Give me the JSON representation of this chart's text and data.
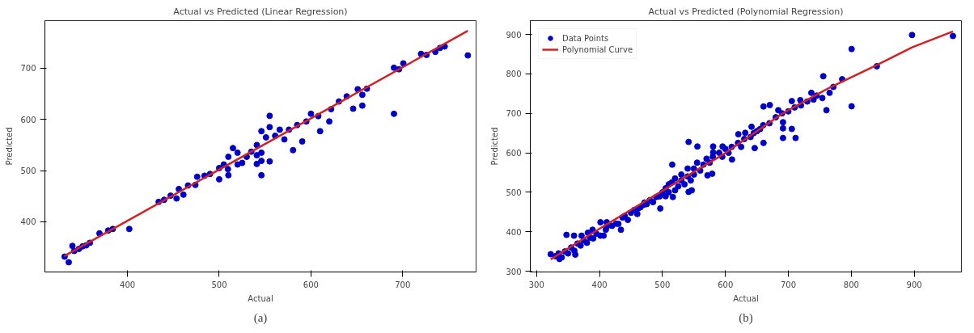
{
  "chart_data": [
    {
      "type": "scatter",
      "title": "Actual vs Predicted (Linear Regression)",
      "xlabel": "Actual",
      "ylabel": "Predicted",
      "annotations": [
        "(a)"
      ],
      "xlim": [
        310,
        780
      ],
      "ylim": [
        302,
        793
      ],
      "xticks": [
        400,
        500,
        600,
        700
      ],
      "yticks": [
        400,
        500,
        600,
        700
      ],
      "grid": false,
      "legend": false,
      "series": [
        {
          "marker": "circle",
          "color": "#0000cc",
          "x": [
            331.5,
            336,
            340,
            342,
            347,
            351,
            355,
            359,
            369.5,
            379,
            384,
            402,
            434,
            440,
            447,
            453.5,
            456,
            461,
            466,
            474,
            476,
            484,
            490,
            500,
            500,
            505,
            510,
            510,
            509.5,
            515,
            520,
            520,
            525,
            530,
            535,
            541,
            541,
            541,
            546,
            546,
            546,
            546,
            555,
            555,
            555,
            551,
            561,
            566,
            571,
            576,
            580.5,
            585,
            590.5,
            595,
            600,
            610,
            608,
            620,
            622,
            630.5,
            639,
            646,
            651,
            656,
            656,
            661,
            690.5,
            690.5,
            696,
            700.7,
            720,
            726,
            735.6,
            740.7,
            745.8,
            771
          ],
          "values": [
            332,
            321,
            353,
            343,
            347,
            352,
            354,
            359,
            377.5,
            383,
            386,
            386,
            439,
            443,
            451,
            445.6,
            464,
            453,
            471,
            472,
            488,
            490,
            493.5,
            505,
            483,
            512,
            527,
            491,
            503,
            544,
            535,
            512,
            515,
            527,
            537,
            550,
            530,
            513,
            577,
            535,
            519,
            491,
            607,
            585,
            518,
            565,
            568,
            580,
            561,
            580,
            540,
            589,
            557,
            596,
            611,
            577,
            606.5,
            596,
            620,
            635,
            645,
            621,
            659,
            627,
            648,
            660,
            611,
            701,
            698,
            709.5,
            728,
            726,
            732,
            739.6,
            742.6,
            725
          ]
        },
        {
          "type": "line",
          "color": "#d42020",
          "x": [
            331,
            771
          ],
          "values": [
            333,
            773
          ]
        }
      ]
    },
    {
      "type": "scatter",
      "title": "Actual vs Predicted (Polynomial Regression)",
      "xlabel": "Actual",
      "ylabel": "Predicted",
      "annotations": [
        "(b)"
      ],
      "xlim": [
        290,
        975
      ],
      "ylim": [
        298,
        935
      ],
      "xticks": [
        300,
        400,
        500,
        600,
        700,
        800,
        900
      ],
      "yticks": [
        300,
        400,
        500,
        600,
        700,
        800,
        900
      ],
      "grid": false,
      "legend": "top left",
      "series": [
        {
          "marker": "circle",
          "name": "Data Points",
          "color": "#0000cc",
          "x": [
            961.5,
            896.5,
            800.5,
            800.5,
            840.5,
            785.5,
            755.5,
            771.5,
            765.5,
            760.5,
            754,
            736.5,
            719,
            705.5,
            711.5,
            705.5,
            691.5,
            691.5,
            691.5,
            684,
            670.5,
            660.5,
            660.5,
            646.5,
            641.5,
            631.5,
            620.5,
            610.5,
            595.5,
            580.5,
            580.5,
            571.5,
            579,
            555.5,
            541.5,
            541.5,
            546.5,
            515.5,
            496.5,
            495.5,
            516.5,
            471.5,
            461.5,
            436.5,
            434,
            426.5,
            411.5,
            406.5,
            401.5,
            411.5,
            401.5,
            347.5,
            361.5,
            336.5,
            322.5,
            389,
            381.5,
            371.5,
            359.5,
            330,
            335,
            340,
            345,
            350,
            355,
            360,
            365,
            370,
            375,
            380,
            385,
            390,
            395,
            410,
            420,
            430,
            440,
            445,
            450,
            455,
            460,
            465,
            470,
            475,
            480,
            485,
            490,
            500,
            505,
            505,
            510,
            510,
            515,
            520,
            520,
            525,
            530,
            530,
            535,
            540,
            540,
            545,
            550,
            550,
            555,
            560,
            565,
            570,
            575,
            580,
            590,
            595,
            600,
            605,
            610,
            620,
            625,
            630,
            640,
            645,
            650,
            655,
            660,
            670,
            680,
            690,
            700,
            710,
            720,
            730,
            740,
            745
          ],
          "values": [
            896,
            898.5,
            863,
            718,
            819.4,
            786.4,
            794,
            767,
            752,
            708,
            739,
            752,
            733.5,
            731,
            637.6,
            660.6,
            637.6,
            662,
            677.5,
            708,
            721,
            717.4,
            625,
            612,
            666,
            650.6,
            647,
            583,
            616,
            616,
            600.8,
            543,
            547,
            616,
            627.6,
            501,
            505,
            570,
            459,
            489.5,
            488,
            474,
            459,
            436,
            405,
            420.5,
            413,
            390,
            390,
            424,
            424,
            392,
            342,
            331,
            343,
            405,
            397.5,
            390,
            390,
            338,
            345,
            335,
            350,
            345,
            360,
            352,
            370,
            365,
            378,
            372,
            385,
            383,
            395,
            405,
            415,
            420,
            440,
            430,
            448,
            455,
            445,
            462,
            468,
            470,
            480,
            475,
            488,
            500,
            510,
            490,
            520,
            500,
            525,
            505,
            535,
            515,
            530,
            545,
            520,
            540,
            560,
            530,
            560,
            545,
            575,
            555,
            570,
            585,
            575,
            590,
            600,
            590,
            610,
            600,
            615,
            625,
            615,
            635,
            640,
            650,
            655,
            660,
            670,
            675,
            690,
            700,
            705,
            715,
            720,
            730,
            735,
            745
          ]
        },
        {
          "type": "line",
          "name": "Polynomial Curve",
          "color": "#d42020",
          "x": [
            322.5,
            401.5,
            501.5,
            601.5,
            691.5,
            766.5,
            841.5,
            896.5,
            961.5
          ],
          "values": [
            330,
            409,
            505,
            601,
            700.5,
            766,
            823,
            867,
            907.6
          ]
        }
      ]
    }
  ]
}
